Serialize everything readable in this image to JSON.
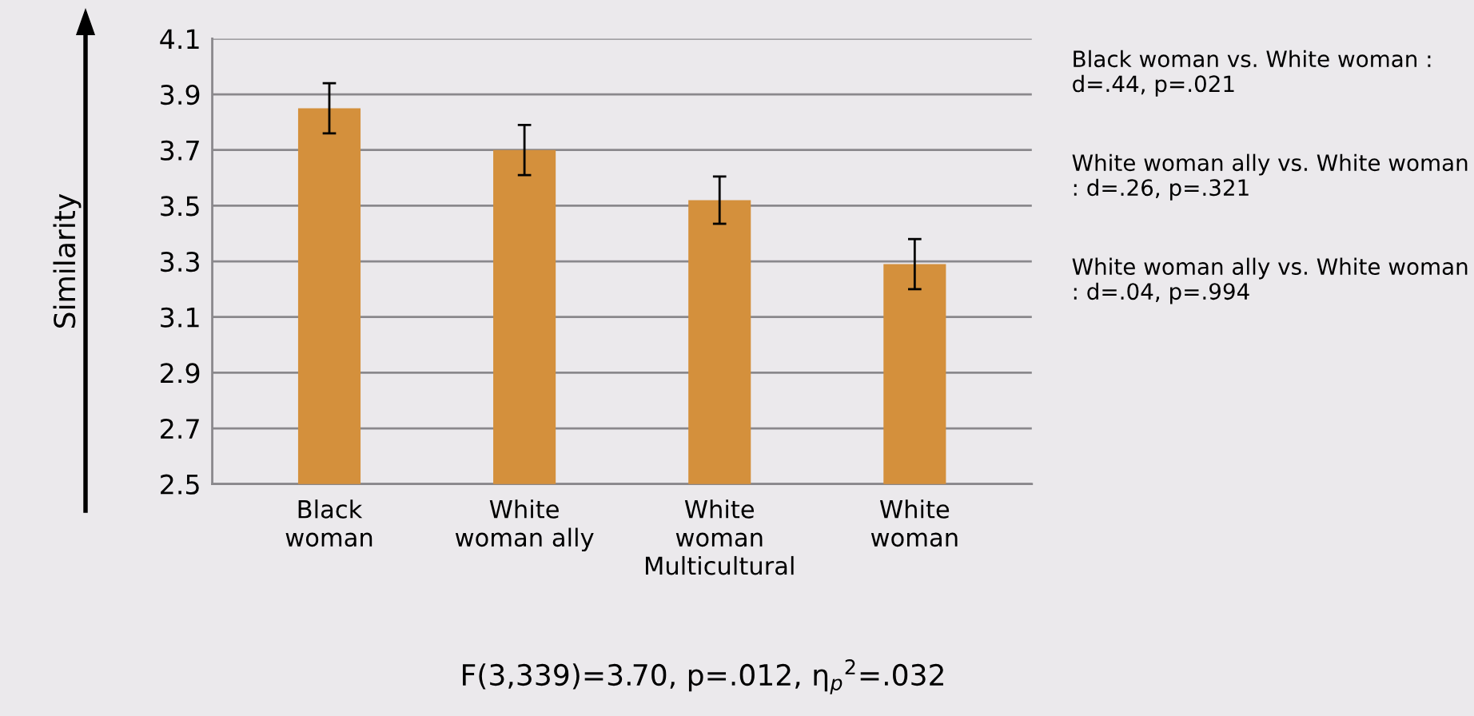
{
  "chart_data": {
    "type": "bar",
    "ylabel": "Similarity",
    "categories": [
      "Black\nwoman",
      "White\nwoman ally",
      "White\nwoman\nMulticultural",
      "White\nwoman"
    ],
    "values": [
      3.85,
      3.7,
      3.52,
      3.29
    ],
    "errors": [
      0.09,
      0.09,
      0.085,
      0.09
    ],
    "color": "#d4903c",
    "ylim": [
      2.5,
      4.1
    ],
    "yticks": [
      2.5,
      2.7,
      2.9,
      3.1,
      3.3,
      3.5,
      3.7,
      3.9,
      4.1
    ],
    "grid": "y",
    "legend": false,
    "annotations": [
      "Black woman vs. White woman : d=.44, p=.021",
      "White woman ally vs. White woman : d=.26, p=.321",
      "White woman ally vs. White woman : d=.04, p=.994",
      "F(3,339)=3.70, p=.012, η$_{p}$$^{2}$=.032"
    ]
  }
}
